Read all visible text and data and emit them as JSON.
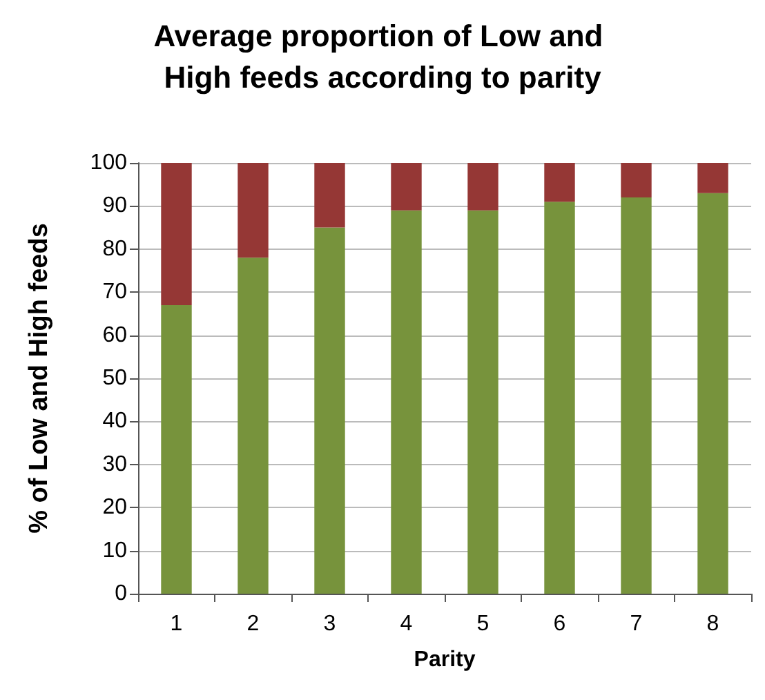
{
  "chart_data": {
    "type": "bar",
    "title": "Average proportion of Low and High feeds according to parity",
    "xlabel": "Parity",
    "ylabel": "% of Low and High feeds",
    "categories": [
      "1",
      "2",
      "3",
      "4",
      "5",
      "6",
      "7",
      "8"
    ],
    "series": [
      {
        "color": "#77933c",
        "values": [
          67,
          78,
          85,
          89,
          89,
          91,
          92,
          93
        ]
      },
      {
        "color": "#953735",
        "values": [
          33,
          22,
          15,
          11,
          11,
          9,
          8,
          7
        ]
      }
    ],
    "stacked": true,
    "ylim": [
      0,
      100
    ],
    "yticks": [
      0,
      10,
      20,
      30,
      40,
      50,
      60,
      70,
      80,
      90,
      100
    ],
    "grid": "y"
  }
}
